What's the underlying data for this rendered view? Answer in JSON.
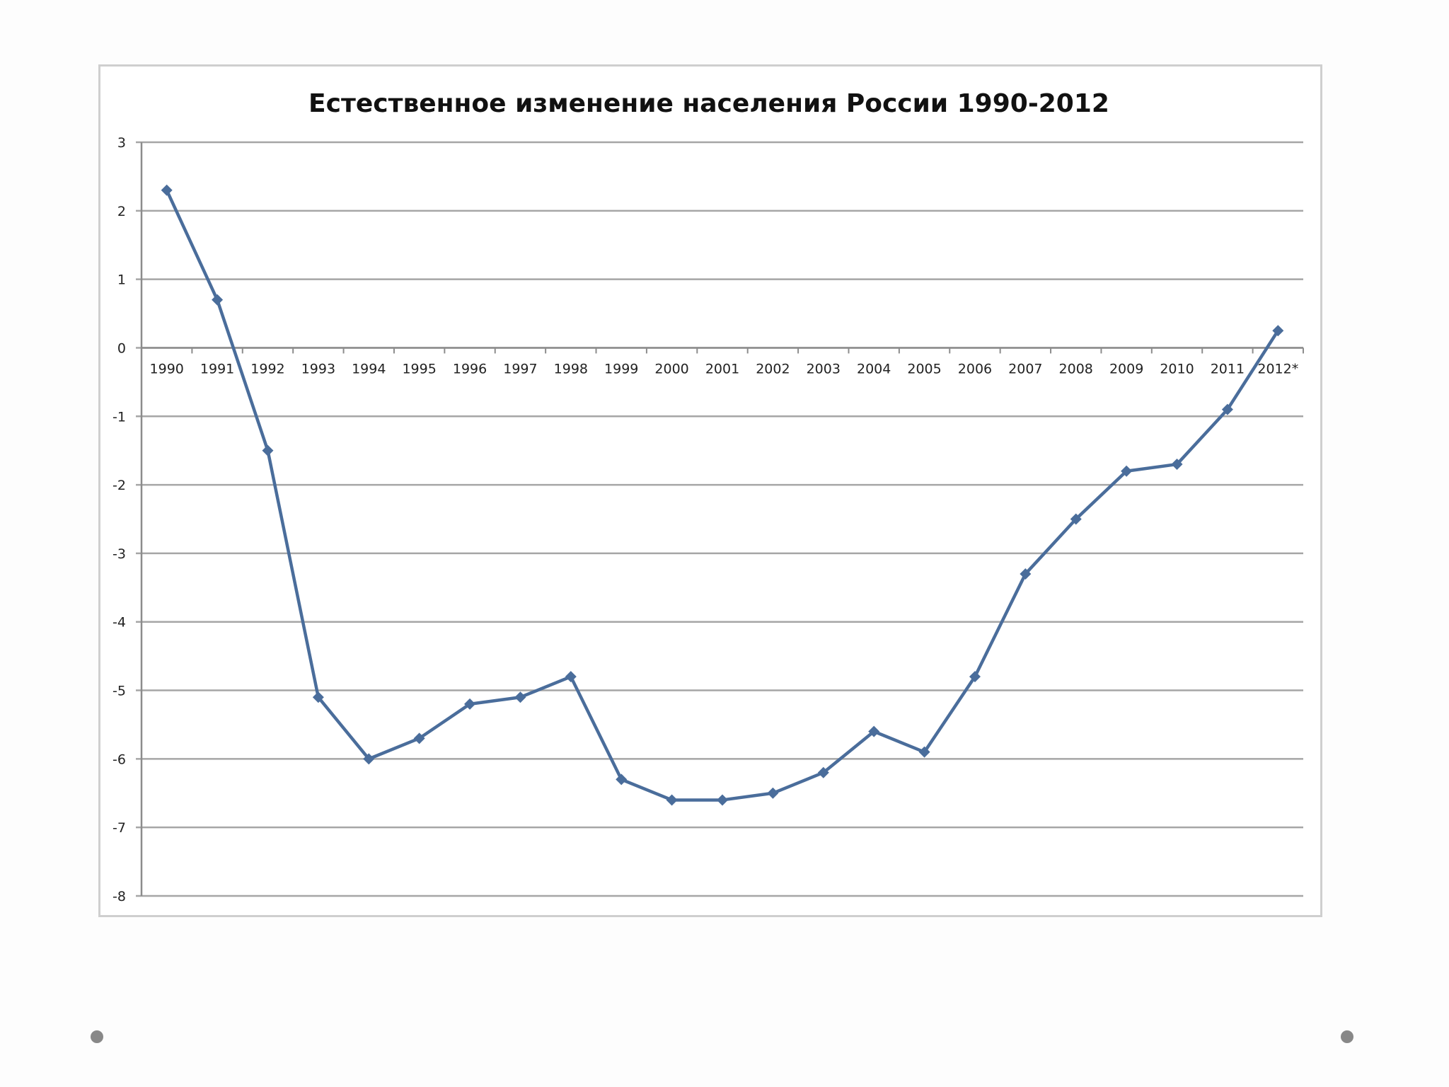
{
  "chart_data": {
    "type": "line",
    "title": "Естественное изменение населения России 1990-2012",
    "xlabel": "",
    "ylabel": "",
    "categories": [
      "1990",
      "1991",
      "1992",
      "1993",
      "1994",
      "1995",
      "1996",
      "1997",
      "1998",
      "1999",
      "2000",
      "2001",
      "2002",
      "2003",
      "2004",
      "2005",
      "2006",
      "2007",
      "2008",
      "2009",
      "2010",
      "2011",
      "2012*"
    ],
    "series": [
      {
        "values": [
          2.3,
          0.7,
          -1.5,
          -5.1,
          -6.0,
          -5.7,
          -5.2,
          -5.1,
          -4.8,
          -6.3,
          -6.6,
          -6.6,
          -6.5,
          -6.2,
          -5.6,
          -5.9,
          -4.8,
          -3.3,
          -2.5,
          -1.8,
          -1.7,
          -0.9,
          0.25
        ]
      }
    ],
    "ylim": [
      -8,
      3
    ],
    "yticks": [
      "3",
      "2",
      "1",
      "0",
      "-1",
      "-2",
      "-3",
      "-4",
      "-5",
      "-6",
      "-7",
      "-8"
    ],
    "grid": true,
    "legend": "none",
    "colors": {
      "line": "#4a6d9b",
      "marker": "#4a6d9b",
      "grid": "#a6a6a6",
      "axis": "#8c8c8c"
    }
  }
}
